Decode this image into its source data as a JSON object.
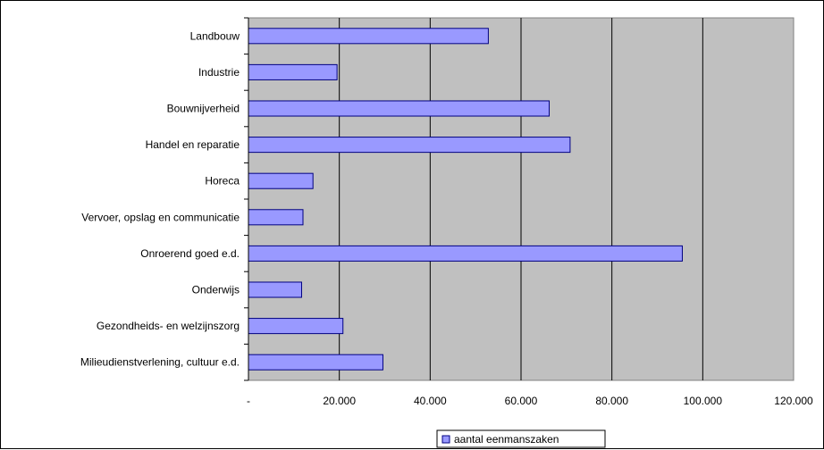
{
  "chart_data": {
    "type": "bar",
    "orientation": "horizontal",
    "categories": [
      "Landbouw",
      "Industrie",
      "Bouwnijverheid",
      "Handel en reparatie",
      "Horeca",
      "Vervoer, opslag en communicatie",
      "Onroerend goed e.d.",
      "Onderwijs",
      "Gezondheids- en welzijnszorg",
      "Milieudienstverlening, cultuur e.d."
    ],
    "series": [
      {
        "name": "aantal eenmanszaken",
        "values": [
          52800,
          19500,
          66200,
          70800,
          14200,
          12000,
          95500,
          11700,
          20800,
          29600
        ]
      }
    ],
    "xlim": [
      0,
      120000
    ],
    "xticks": [
      0,
      20000,
      40000,
      60000,
      80000,
      100000,
      120000
    ],
    "xtick_labels": [
      "-",
      "20.000",
      "40.000",
      "60.000",
      "80.000",
      "100.000",
      "120.000"
    ],
    "grid": "vertical",
    "legend_position": "bottom",
    "colors": {
      "bar_fill": "#9999ff",
      "bar_stroke": "#000080",
      "plot_bg": "#c0c0c0",
      "grid": "#000000"
    }
  }
}
